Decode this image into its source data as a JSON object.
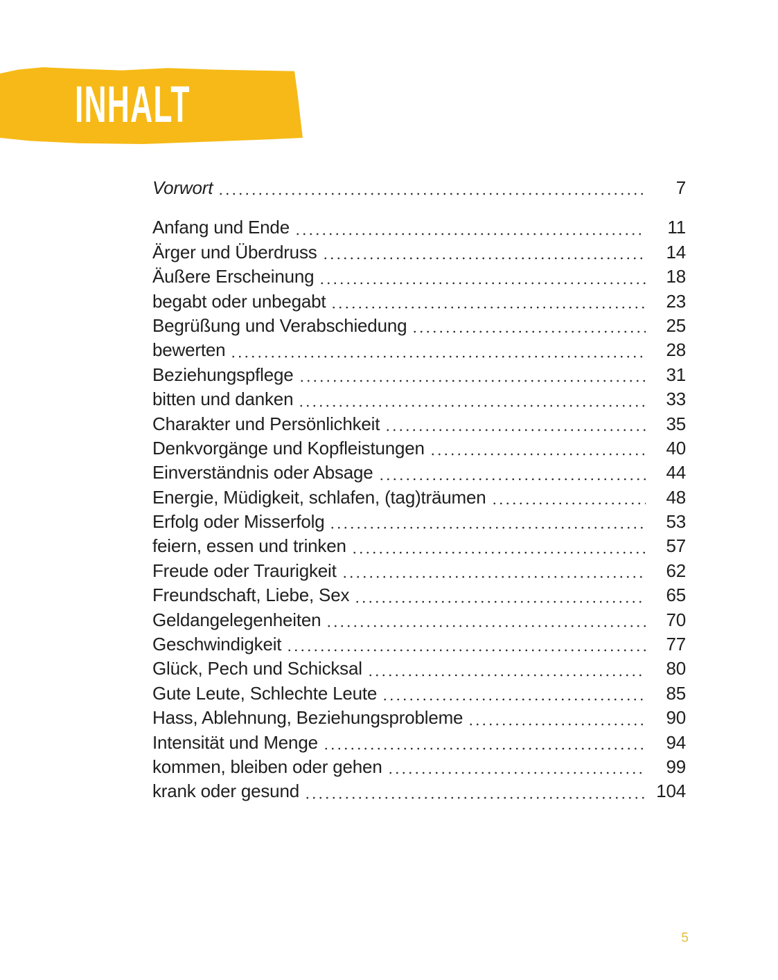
{
  "theme": {
    "banner_color": "#F6B917",
    "folio_color": "#E3BE3A",
    "text_color": "#1F1F1F"
  },
  "header": {
    "title": "INHALT"
  },
  "toc": {
    "preface": {
      "label": "Vorwort",
      "page": "7"
    },
    "entries": [
      {
        "label": "Anfang und Ende",
        "page": "11"
      },
      {
        "label": "Ärger und Überdruss",
        "page": "14"
      },
      {
        "label": "Äußere Erscheinung",
        "page": "18"
      },
      {
        "label": "begabt oder unbegabt",
        "page": "23"
      },
      {
        "label": "Begrüßung und Verabschiedung",
        "page": "25"
      },
      {
        "label": "bewerten",
        "page": "28"
      },
      {
        "label": "Beziehungspflege",
        "page": "31"
      },
      {
        "label": "bitten und danken",
        "page": "33"
      },
      {
        "label": "Charakter und Persönlichkeit",
        "page": "35"
      },
      {
        "label": "Denkvorgänge und Kopfleistungen",
        "page": "40"
      },
      {
        "label": "Einverständnis oder Absage",
        "page": "44"
      },
      {
        "label": "Energie, Müdigkeit, schlafen, (tag)träumen",
        "page": "48"
      },
      {
        "label": "Erfolg oder Misserfolg",
        "page": "53"
      },
      {
        "label": "feiern, essen und trinken",
        "page": "57"
      },
      {
        "label": "Freude oder Traurigkeit",
        "page": "62"
      },
      {
        "label": "Freundschaft, Liebe, Sex",
        "page": "65"
      },
      {
        "label": "Geldangelegenheiten",
        "page": "70"
      },
      {
        "label": "Geschwindigkeit",
        "page": "77"
      },
      {
        "label": "Glück, Pech und Schicksal",
        "page": "80"
      },
      {
        "label": "Gute Leute, Schlechte Leute",
        "page": "85"
      },
      {
        "label": "Hass, Ablehnung, Beziehungsprobleme",
        "page": "90"
      },
      {
        "label": "Intensität und Menge",
        "page": "94"
      },
      {
        "label": "kommen, bleiben oder gehen",
        "page": "99"
      },
      {
        "label": "krank oder gesund",
        "page": "104"
      }
    ]
  },
  "footer": {
    "page_number": "5"
  }
}
